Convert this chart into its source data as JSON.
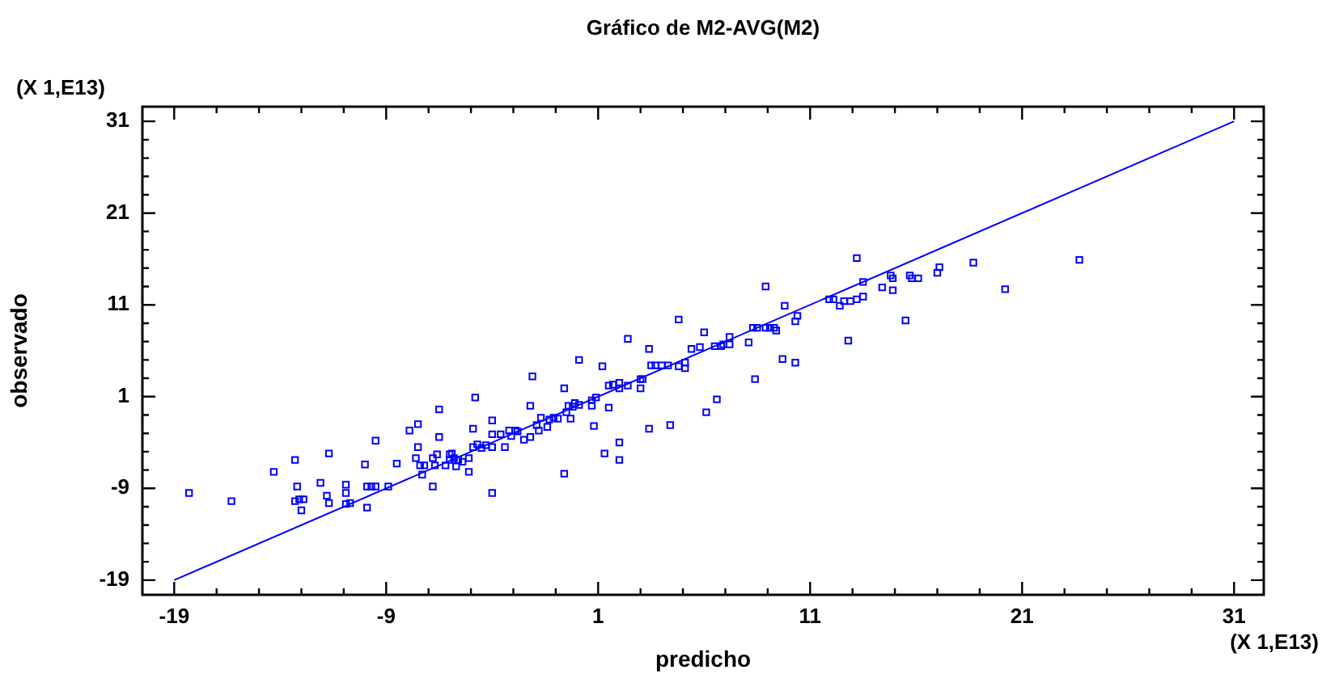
{
  "chart_data": {
    "type": "scatter",
    "title": "Gráfico de M2-AVG(M2)",
    "xlabel": "predicho",
    "ylabel": "observado",
    "annotations": [
      "(X 1,E13)",
      "(X 1,E13)"
    ],
    "xlim": [
      -20.5,
      32.4
    ],
    "ylim": [
      -20.6,
      32.6
    ],
    "xticks": [
      -19,
      {
        "value": -17,
        "label": null
      },
      {
        "value": -15,
        "label": null
      },
      {
        "value": -13,
        "label": null
      },
      {
        "value": -11,
        "label": null
      },
      -9,
      {
        "value": -7,
        "label": null
      },
      {
        "value": -5,
        "label": null
      },
      {
        "value": -3,
        "label": null
      },
      {
        "value": -1,
        "label": null
      },
      1,
      {
        "value": 3,
        "label": null
      },
      {
        "value": 5,
        "label": null
      },
      {
        "value": 7,
        "label": null
      },
      {
        "value": 9,
        "label": null
      },
      11,
      {
        "value": 13,
        "label": null
      },
      {
        "value": 15,
        "label": null
      },
      {
        "value": 17,
        "label": null
      },
      {
        "value": 19,
        "label": null
      },
      21,
      {
        "value": 23,
        "label": null
      },
      {
        "value": 25,
        "label": null
      },
      {
        "value": 27,
        "label": null
      },
      {
        "value": 29,
        "label": null
      },
      31
    ],
    "yticks": [
      -19,
      {
        "value": -17,
        "label": null
      },
      {
        "value": -15,
        "label": null
      },
      {
        "value": -13,
        "label": null
      },
      {
        "value": -11,
        "label": null
      },
      -9,
      {
        "value": -7,
        "label": null
      },
      {
        "value": -5,
        "label": null
      },
      {
        "value": -3,
        "label": null
      },
      {
        "value": -1,
        "label": null
      },
      1,
      {
        "value": 3,
        "label": null
      },
      {
        "value": 5,
        "label": null
      },
      {
        "value": 7,
        "label": null
      },
      {
        "value": 9,
        "label": null
      },
      11,
      {
        "value": 13,
        "label": null
      },
      {
        "value": 15,
        "label": null
      },
      {
        "value": 17,
        "label": null
      },
      {
        "value": 19,
        "label": null
      },
      21,
      {
        "value": 23,
        "label": null
      },
      {
        "value": 25,
        "label": null
      },
      {
        "value": 27,
        "label": null
      },
      {
        "value": 29,
        "label": null
      },
      31
    ],
    "grid": false,
    "legend": false,
    "marker": "square",
    "series": [
      {
        "color": "#0000ff",
        "x": [
          -18.3,
          -16.3,
          -14.3,
          -13.3,
          -13.2,
          -13.3,
          -13.1,
          -12.9,
          -13.0,
          -12.1,
          -11.8,
          -11.7,
          -11.7,
          -10.9,
          -10.9,
          -10.9,
          -10.7,
          -10.0,
          -9.9,
          -9.9,
          -9.7,
          -9.5,
          -9.5,
          -8.9,
          -8.5,
          -7.9,
          -7.5,
          -6.5,
          -7.5,
          -7.6,
          -7.4,
          -7.2,
          -7.3,
          -6.8,
          -6.7,
          -6.8,
          -6.6,
          -6.5,
          -6.2,
          -6.0,
          -5.9,
          -6.0,
          -5.8,
          -5.7,
          -5.6,
          -5.4,
          -5.1,
          -5.1,
          -4.9,
          -4.8,
          -4.9,
          -4.7,
          -4.5,
          -4.3,
          -4.0,
          -4.0,
          -4.0,
          -4.0,
          -3.6,
          -3.4,
          -3.2,
          -2.9,
          -2.8,
          -3.1,
          -2.5,
          -2.2,
          -2.2,
          -2.1,
          -1.9,
          -1.8,
          -1.7,
          -1.4,
          -1.3,
          -1.1,
          -0.9,
          -0.6,
          -0.6,
          -0.5,
          -0.4,
          -0.3,
          -0.2,
          -0.1,
          0.1,
          0.1,
          0.7,
          0.7,
          0.8,
          0.9,
          1.2,
          1.3,
          1.5,
          1.5,
          1.7,
          2.0,
          2.0,
          2.0,
          2.0,
          2.4,
          2.4,
          3.0,
          3.0,
          3.1,
          3.4,
          3.4,
          3.5,
          3.7,
          4.0,
          4.3,
          4.4,
          4.8,
          4.8,
          5.1,
          5.1,
          5.4,
          5.8,
          6.0,
          6.1,
          6.5,
          6.6,
          6.8,
          6.9,
          7.2,
          7.2,
          8.1,
          8.3,
          8.4,
          8.5,
          8.9,
          8.9,
          9.1,
          9.3,
          9.4,
          9.7,
          9.8,
          10.3,
          10.3,
          10.4,
          11.9,
          12.1,
          12.4,
          12.6,
          12.8,
          12.9,
          13.2,
          13.2,
          13.5,
          13.5,
          14.4,
          14.8,
          14.9,
          14.9,
          15.5,
          15.7,
          15.8,
          16.1,
          17.0,
          17.1,
          18.7,
          20.2,
          23.7
        ],
        "values": [
          -9.5,
          -10.4,
          -7.2,
          -5.9,
          -8.8,
          -10.4,
          -10.2,
          -10.2,
          -11.4,
          -8.4,
          -9.8,
          -10.6,
          -5.2,
          -8.6,
          -9.5,
          -10.7,
          -10.6,
          -6.4,
          -11.1,
          -8.8,
          -8.8,
          -8.8,
          -3.8,
          -8.8,
          -6.3,
          -2.7,
          -2.0,
          -0.4,
          -4.5,
          -5.7,
          -6.5,
          -6.5,
          -7.5,
          -8.8,
          -6.5,
          -5.7,
          -5.3,
          -3.4,
          -6.5,
          -5.3,
          -5.2,
          -5.9,
          -5.7,
          -6.6,
          -5.9,
          -6.1,
          -5.7,
          -7.2,
          -2.5,
          0.9,
          -4.5,
          -4.2,
          -4.6,
          -4.3,
          -1.6,
          -3.1,
          -4.5,
          -9.5,
          -3.1,
          -4.5,
          -2.7,
          -2.7,
          -2.8,
          -3.3,
          -3.7,
          -3.4,
          0.0,
          3.2,
          -2.1,
          -2.7,
          -1.3,
          -2.3,
          -1.5,
          -1.3,
          -1.4,
          1.9,
          -7.4,
          -0.7,
          0.0,
          -1.4,
          -0.1,
          0.3,
          0.1,
          5.0,
          0.0,
          0.6,
          -2.2,
          0.9,
          4.3,
          -5.2,
          -0.2,
          2.2,
          2.3,
          2.5,
          1.9,
          -4.0,
          -5.9,
          7.3,
          2.2,
          2.9,
          1.9,
          2.9,
          6.2,
          -2.5,
          4.4,
          4.4,
          4.4,
          4.4,
          -2.1,
          9.4,
          4.3,
          4.7,
          4.1,
          6.2,
          6.4,
          8.0,
          -0.7,
          6.5,
          0.7,
          6.5,
          6.7,
          6.7,
          7.5,
          6.9,
          8.5,
          2.9,
          8.5,
          13.0,
          8.5,
          8.5,
          8.5,
          8.2,
          5.1,
          10.9,
          9.2,
          4.7,
          9.8,
          11.6,
          11.6,
          10.9,
          11.4,
          7.1,
          11.4,
          11.6,
          16.1,
          11.9,
          13.5,
          12.9,
          14.2,
          13.9,
          12.6,
          9.3,
          14.2,
          13.9,
          13.9,
          14.5,
          15.1,
          15.6,
          12.7,
          15.9
        ]
      },
      {
        "type": "line",
        "color": "#0000ff",
        "marker": "none",
        "x": [
          -19,
          31
        ],
        "values": [
          -19,
          31
        ]
      }
    ]
  }
}
